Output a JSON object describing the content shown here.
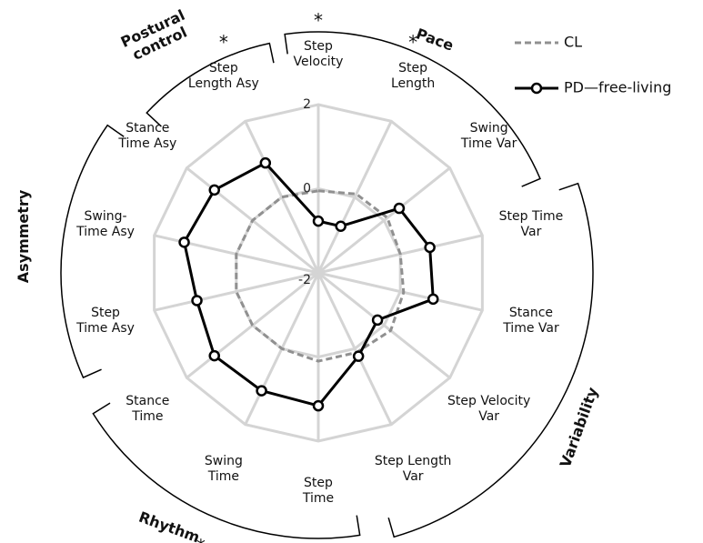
{
  "chart_data": {
    "type": "radar",
    "categories": [
      "Step\nVelocity",
      "Step\nLength",
      "Swing\nTime Var",
      "Step Time\nVar",
      "Stance\nTime Var",
      "Step Velocity\nVar",
      "Step Length\nVar",
      "Step\nTime",
      "Swing\nTime",
      "Stance\nTime",
      "Step\nTime Asy",
      "Swing-\nTime Asy",
      "Stance\nTime Asy",
      "Step\nLength Asy"
    ],
    "significance": [
      "*",
      "*",
      null,
      null,
      null,
      null,
      null,
      null,
      "*",
      null,
      null,
      null,
      null,
      "*"
    ],
    "series": [
      {
        "name": "CL",
        "color": "#909090",
        "dashed": true,
        "markers": false,
        "values": [
          -0.05,
          0.08,
          0.1,
          0,
          0.08,
          0.2,
          0.1,
          0.1,
          0,
          0,
          0,
          0,
          0,
          0
        ]
      },
      {
        "name": "PD—free-living",
        "color": "#000000",
        "dashed": false,
        "markers": true,
        "values": [
          -0.77,
          -0.77,
          0.46,
          0.72,
          0.8,
          -0.2,
          0.2,
          1.16,
          1.11,
          1.16,
          0.96,
          1.27,
          1.16,
          0.9
        ]
      }
    ],
    "groups": [
      "Postural\ncontrol",
      "Pace",
      "Variability",
      "Rhythm",
      "Asymmetry"
    ],
    "rlim": [
      -2,
      2
    ],
    "rticks": [
      -2,
      0,
      2
    ],
    "grid": true,
    "legend": "upper right"
  }
}
